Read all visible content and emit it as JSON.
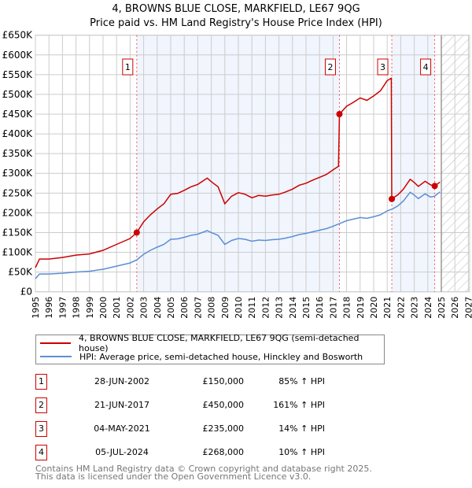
{
  "chart_data": {
    "type": "line",
    "title": "4, BROWNS BLUE CLOSE, MARKFIELD, LE67 9QG",
    "subtitle": "Price paid vs. HM Land Registry's House Price Index (HPI)",
    "xlim": [
      1995,
      2027
    ],
    "ylim": [
      0,
      650000
    ],
    "x_ticks": [
      "1995",
      "1996",
      "1997",
      "1998",
      "1999",
      "2000",
      "2001",
      "2002",
      "2003",
      "2004",
      "2005",
      "2006",
      "2007",
      "2008",
      "2009",
      "2010",
      "2011",
      "2012",
      "2013",
      "2014",
      "2015",
      "2016",
      "2017",
      "2018",
      "2019",
      "2020",
      "2021",
      "2022",
      "2023",
      "2024",
      "2025",
      "2026",
      "2027"
    ],
    "y_ticks": [
      "£0",
      "£50K",
      "£100K",
      "£150K",
      "£200K",
      "£250K",
      "£300K",
      "£350K",
      "£400K",
      "£450K",
      "£500K",
      "£550K",
      "£600K",
      "£650K"
    ],
    "grid": true,
    "forecast_from": 2025,
    "series": [
      {
        "name": "4, BROWNS BLUE CLOSE, MARKFIELD, LE67 9QG (semi-detached house)",
        "color": "#cc0000",
        "x": [
          1995.0,
          1995.3,
          1996,
          1997,
          1998,
          1999,
          2000,
          2001,
          2002,
          2002.49,
          2003,
          2003.5,
          2004,
          2004.5,
          2005,
          2005.5,
          2006,
          2006.5,
          2007,
          2007.7,
          2008,
          2008.5,
          2009,
          2009.5,
          2010,
          2010.5,
          2011,
          2011.5,
          2012,
          2012.5,
          2013,
          2013.5,
          2014,
          2014.5,
          2015,
          2015.5,
          2016,
          2016.5,
          2017,
          2017.4,
          2017.47,
          2018,
          2018.5,
          2019,
          2019.5,
          2020,
          2020.5,
          2021,
          2021.3,
          2021.34,
          2021.8,
          2022.2,
          2022.7,
          2023,
          2023.3,
          2023.8,
          2024.2,
          2024.51,
          2024.9
        ],
        "y": [
          61,
          83,
          83,
          87,
          93,
          96,
          105,
          120,
          135,
          150,
          177,
          195,
          210,
          223,
          247,
          249,
          257,
          266,
          272,
          288,
          279,
          266,
          223,
          242,
          251,
          247,
          238,
          244,
          242,
          245,
          247,
          253,
          260,
          270,
          275,
          283,
          290,
          297,
          309,
          318,
          450,
          470,
          480,
          491,
          485,
          496,
          509,
          535,
          541,
          235,
          246,
          260,
          285,
          277,
          267,
          280,
          271,
          268,
          278
        ]
      },
      {
        "name": "HPI: Average price, semi-detached house, Hinckley and Bosworth",
        "color": "#5b8fd4",
        "x": [
          1995.0,
          1995.3,
          1996,
          1997,
          1998,
          1999,
          2000,
          2001,
          2002,
          2002.5,
          2003,
          2003.5,
          2004,
          2004.5,
          2005,
          2005.5,
          2006,
          2006.5,
          2007,
          2007.7,
          2008,
          2008.5,
          2009,
          2009.5,
          2010,
          2010.5,
          2011,
          2011.5,
          2012,
          2012.5,
          2013,
          2013.5,
          2014,
          2014.5,
          2015,
          2015.5,
          2016,
          2016.5,
          2017,
          2017.5,
          2018,
          2018.5,
          2019,
          2019.5,
          2020,
          2020.5,
          2021,
          2021.4,
          2021.8,
          2022.2,
          2022.7,
          2023,
          2023.3,
          2023.8,
          2024.2,
          2024.5,
          2024.9
        ],
        "y": [
          33,
          45,
          45,
          47,
          50,
          52,
          57,
          65,
          73,
          81,
          95,
          105,
          113,
          120,
          133,
          134,
          138,
          143,
          146,
          155,
          150,
          143,
          120,
          130,
          135,
          133,
          128,
          131,
          130,
          132,
          133,
          136,
          140,
          145,
          148,
          152,
          156,
          160,
          166,
          173,
          180,
          184,
          188,
          186,
          190,
          195,
          205,
          210,
          218,
          230,
          252,
          245,
          236,
          248,
          240,
          242,
          253
        ]
      }
    ],
    "y_units": "thousand GBP",
    "sales": [
      {
        "label": "1",
        "x": 2002.49,
        "y": 150
      },
      {
        "label": "2",
        "x": 2017.47,
        "y": 450
      },
      {
        "label": "3",
        "x": 2021.34,
        "y": 235
      },
      {
        "label": "4",
        "x": 2024.51,
        "y": 268
      }
    ],
    "shaded_ranges": [
      [
        2002.49,
        2017.47
      ],
      [
        2021.34,
        2024.51
      ]
    ]
  },
  "legend": {
    "property": "4, BROWNS BLUE CLOSE, MARKFIELD, LE67 9QG (semi-detached house)",
    "hpi": "HPI: Average price, semi-detached house, Hinckley and Bosworth"
  },
  "transactions": [
    {
      "num": "1",
      "date": "28-JUN-2002",
      "price": "£150,000",
      "hpi": "85% ↑ HPI"
    },
    {
      "num": "2",
      "date": "21-JUN-2017",
      "price": "£450,000",
      "hpi": "161% ↑ HPI"
    },
    {
      "num": "3",
      "date": "04-MAY-2021",
      "price": "£235,000",
      "hpi": "14% ↑ HPI"
    },
    {
      "num": "4",
      "date": "05-JUL-2024",
      "price": "£268,000",
      "hpi": "10% ↑ HPI"
    }
  ],
  "footer": {
    "line1": "Contains HM Land Registry data © Crown copyright and database right 2025.",
    "line2": "This data is licensed under the Open Government Licence v3.0."
  }
}
